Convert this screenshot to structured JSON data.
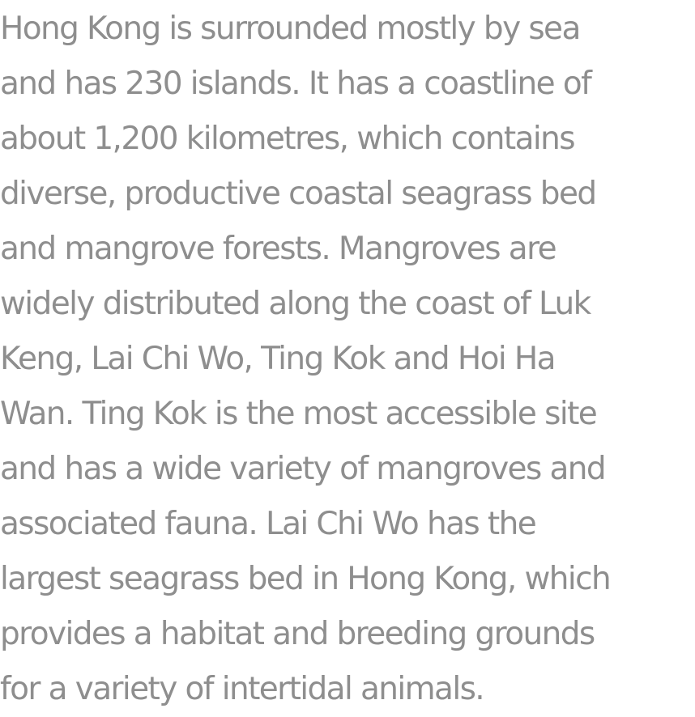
{
  "article": {
    "lines": [
      "Hong Kong is surrounded mostly by sea",
      "and has 230 islands. It has a coastline of",
      "about 1,200 kilometres, which contains",
      "diverse, productive coastal seagrass bed",
      "and mangrove forests. Mangroves are",
      "widely distributed along the coast of Luk",
      "Keng, Lai Chi Wo, Ting Kok and Hoi Ha",
      "Wan. Ting Kok is the most accessible site",
      "and has a wide variety of mangroves and",
      "associated fauna. Lai Chi Wo has the",
      "largest seagrass bed in Hong Kong, which",
      "provides a habitat and breeding grounds",
      "for a variety of intertidal animals."
    ],
    "text_color": "#8e8e8e"
  }
}
